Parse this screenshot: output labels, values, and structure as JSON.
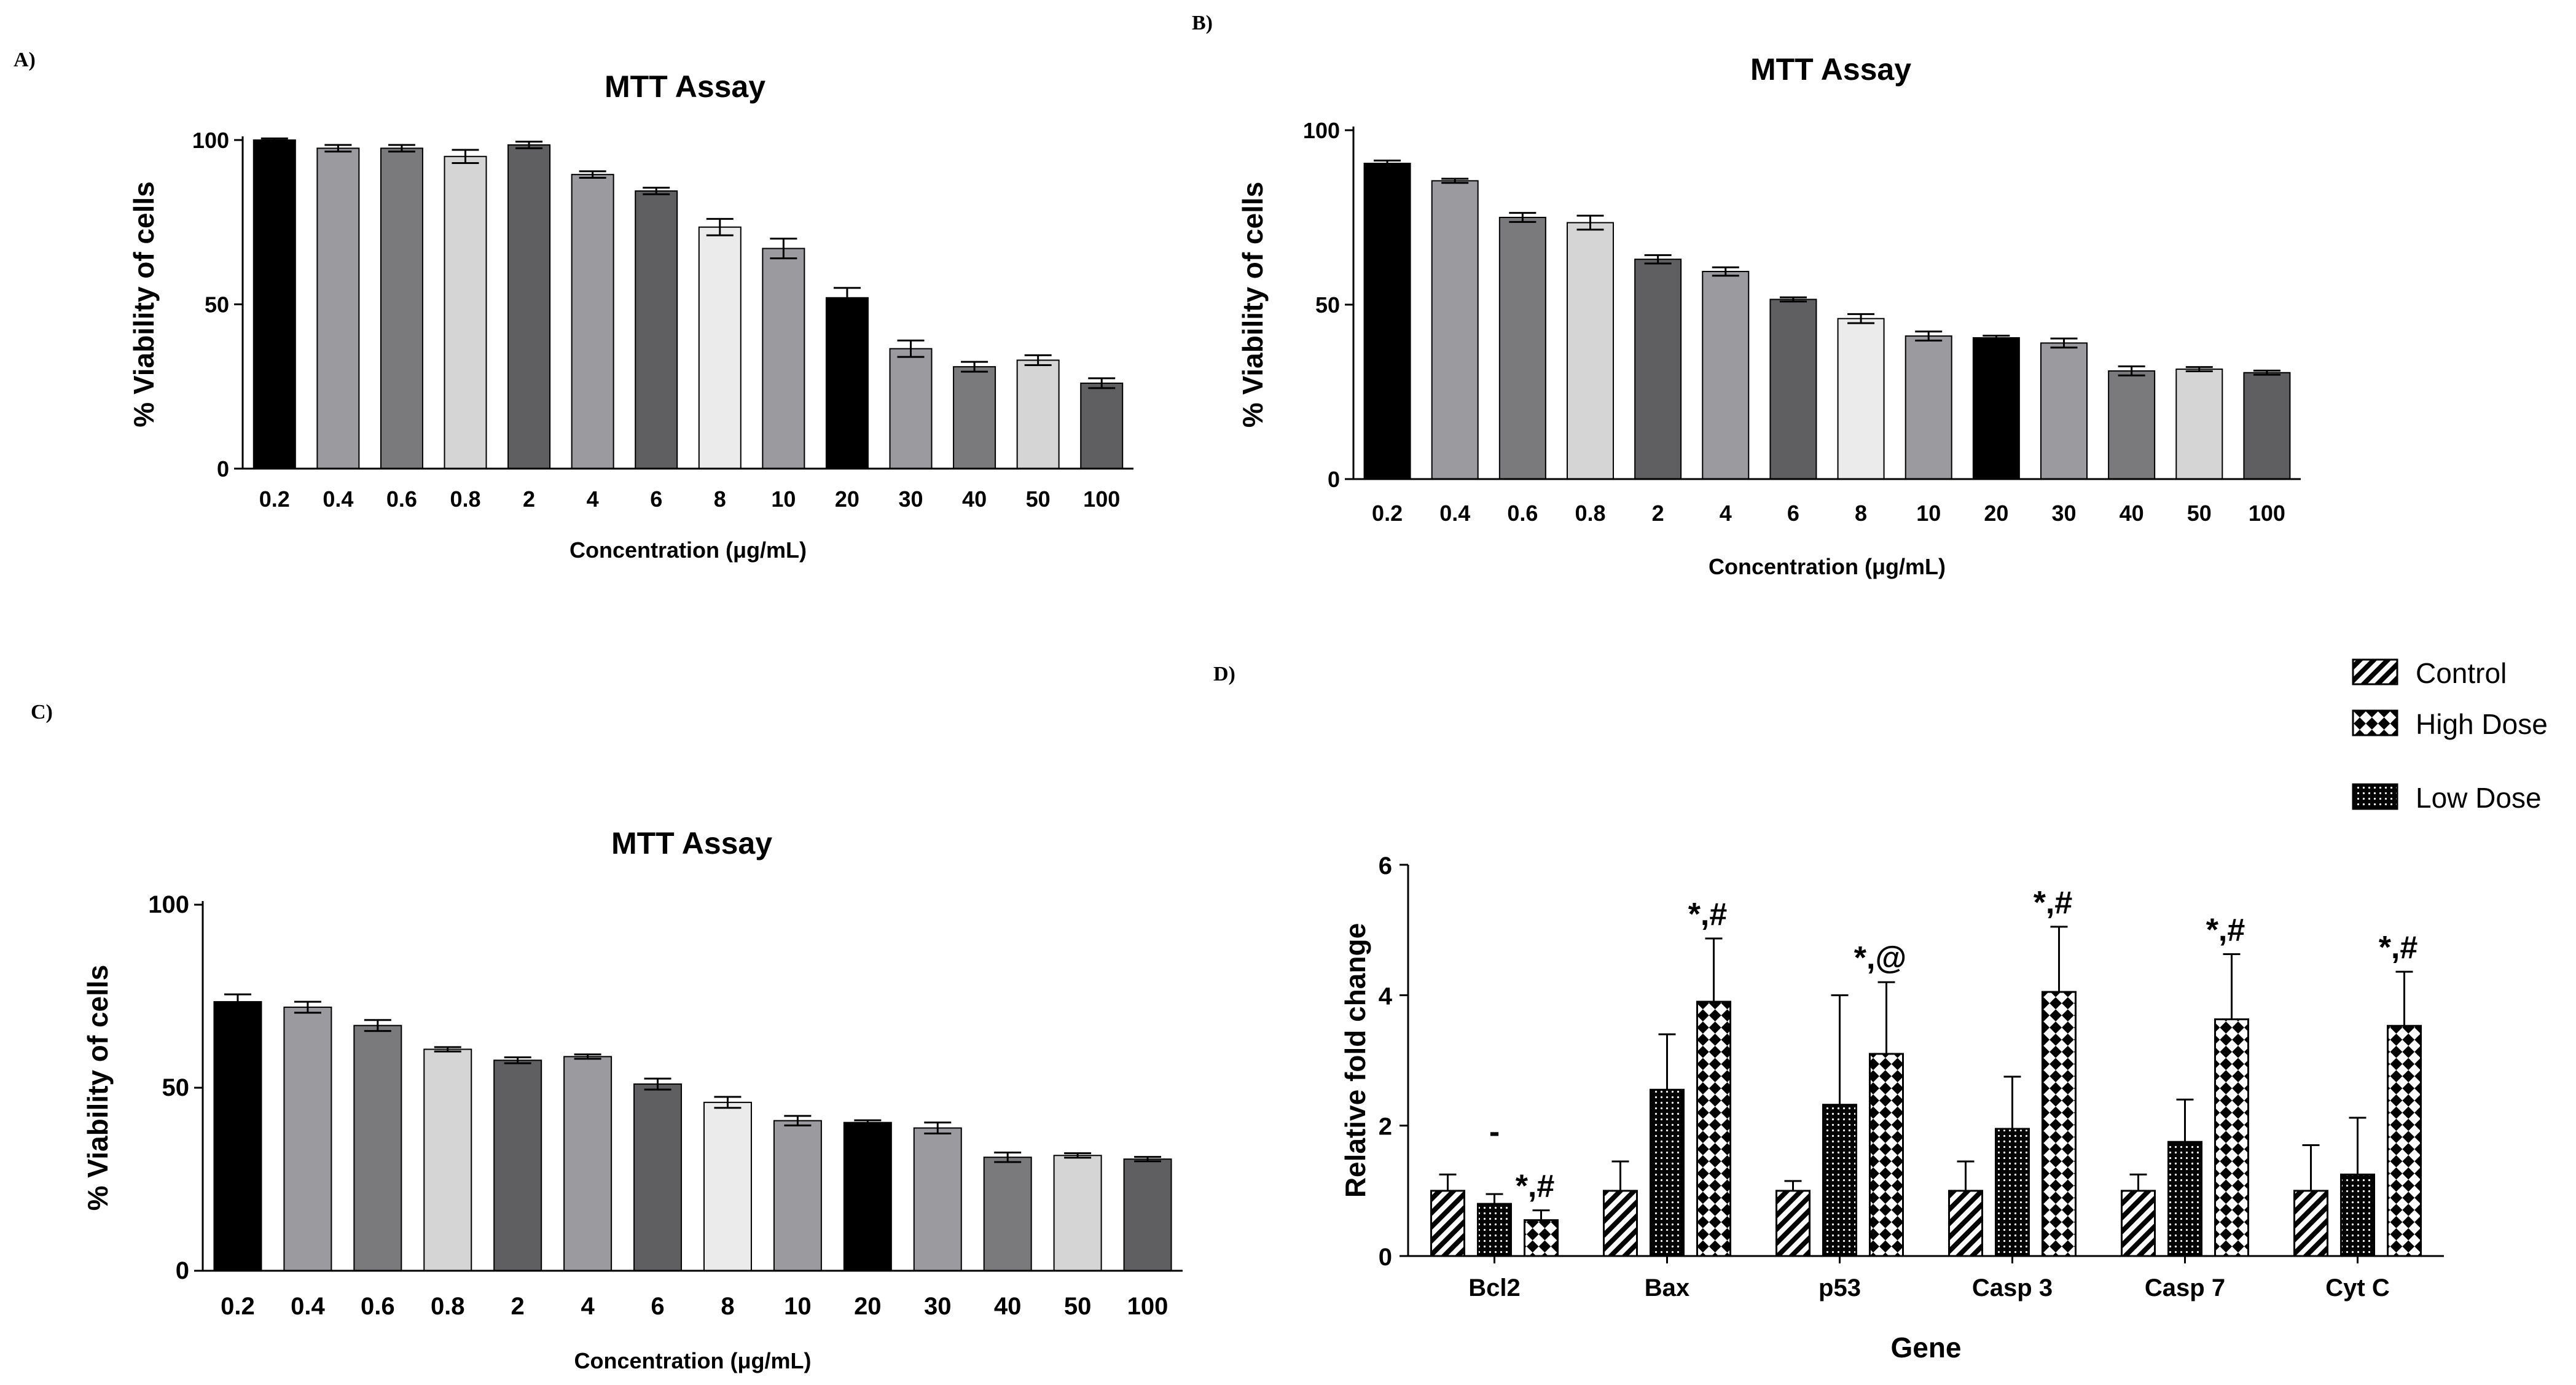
{
  "colors": {
    "black": "#000000",
    "mid_gray": "#9b9b9f",
    "gray": "#7a7a7c",
    "light_gray": "#d5d5d5",
    "dark_gray": "#5f5f61",
    "very_light": "#ebebeb"
  },
  "chart_data": [
    {
      "panel": "A)",
      "type": "bar",
      "title": "MTT Assay",
      "xlabel": "Concentration (μg/mL)",
      "ylabel": "% Viability of cells",
      "ylim": [
        0,
        100
      ],
      "yticks": [
        "0",
        "50",
        "100"
      ],
      "categories": [
        "0.2",
        "0.4",
        "0.6",
        "0.8",
        "2",
        "4",
        "6",
        "8",
        "10",
        "20",
        "30",
        "40",
        "50",
        "100"
      ],
      "values": [
        100,
        97.5,
        97.5,
        95,
        98.5,
        89.5,
        84.5,
        73.5,
        67,
        52,
        36.5,
        31,
        33,
        26
      ],
      "errors": [
        0.5,
        1,
        1,
        2,
        1,
        1,
        1,
        2.5,
        3,
        3,
        2.5,
        1.5,
        1.5,
        1.5
      ],
      "colors": [
        "black",
        "mid_gray",
        "gray",
        "light_gray",
        "dark_gray",
        "mid_gray",
        "dark_gray",
        "very_light",
        "mid_gray",
        "black",
        "mid_gray",
        "gray",
        "light_gray",
        "dark_gray"
      ]
    },
    {
      "panel": "B)",
      "type": "bar",
      "title": "MTT Assay",
      "xlabel": "Concentration (μg/mL)",
      "ylabel": "% Viability of cells",
      "ylim": [
        0,
        100
      ],
      "yticks": [
        "0",
        "50",
        "100"
      ],
      "categories": [
        "0.2",
        "0.4",
        "0.6",
        "0.8",
        "2",
        "4",
        "6",
        "8",
        "10",
        "20",
        "30",
        "40",
        "50",
        "100"
      ],
      "values": [
        90.5,
        85.5,
        75,
        73.5,
        63,
        59.5,
        51.5,
        46,
        41,
        40.5,
        39,
        31,
        31.5,
        30.5
      ],
      "errors": [
        0.8,
        0.6,
        1.3,
        2,
        1.2,
        1.2,
        0.6,
        1.3,
        1.3,
        0.6,
        1.3,
        1.3,
        0.6,
        0.6
      ],
      "colors": [
        "black",
        "mid_gray",
        "gray",
        "light_gray",
        "dark_gray",
        "mid_gray",
        "dark_gray",
        "very_light",
        "mid_gray",
        "black",
        "mid_gray",
        "gray",
        "light_gray",
        "dark_gray"
      ]
    },
    {
      "panel": "C)",
      "type": "bar",
      "title": "MTT Assay",
      "xlabel": "Concentration (μg/mL)",
      "ylabel": "% Viability of cells",
      "ylim": [
        0,
        100
      ],
      "yticks": [
        "0",
        "50",
        "100"
      ],
      "categories": [
        "0.2",
        "0.4",
        "0.6",
        "0.8",
        "2",
        "4",
        "6",
        "8",
        "10",
        "20",
        "30",
        "40",
        "50",
        "100"
      ],
      "values": [
        73.5,
        72,
        67,
        60.5,
        57.5,
        58.5,
        51,
        46,
        41,
        40.5,
        39,
        31,
        31.5,
        30.5
      ],
      "errors": [
        2,
        1.5,
        1.5,
        0.6,
        0.8,
        0.6,
        1.5,
        1.5,
        1.3,
        0.6,
        1.5,
        1.3,
        0.6,
        0.6
      ],
      "colors": [
        "black",
        "mid_gray",
        "gray",
        "light_gray",
        "dark_gray",
        "mid_gray",
        "dark_gray",
        "very_light",
        "mid_gray",
        "black",
        "mid_gray",
        "gray",
        "light_gray",
        "dark_gray"
      ]
    },
    {
      "panel": "D)",
      "type": "bar",
      "title": "",
      "xlabel": "Gene",
      "ylabel": "Relative fold change",
      "ylim": [
        0,
        6
      ],
      "yticks": [
        "0",
        "2",
        "4",
        "6"
      ],
      "categories": [
        "Bcl2",
        "Bax",
        "p53",
        "Casp 3",
        "Casp 7",
        "Cyt C"
      ],
      "series": [
        {
          "name": "Control",
          "pattern": "hatch",
          "values": [
            1,
            1,
            1,
            1,
            1,
            1
          ],
          "errors": [
            0.25,
            0.45,
            0.15,
            0.45,
            0.25,
            0.7
          ]
        },
        {
          "name": "Low Dose",
          "pattern": "dots",
          "values": [
            0.8,
            2.55,
            2.32,
            1.95,
            1.75,
            1.25
          ],
          "errors": [
            0.15,
            0.85,
            1.68,
            0.8,
            0.65,
            0.87
          ]
        },
        {
          "name": "High Dose",
          "pattern": "checker",
          "values": [
            0.55,
            3.9,
            3.1,
            4.05,
            3.63,
            3.53
          ],
          "errors": [
            0.15,
            0.97,
            1.1,
            1.0,
            1.0,
            0.83
          ]
        }
      ],
      "legend_order": [
        "Control",
        "High Dose",
        "Low Dose"
      ],
      "legend_placement": "top-right",
      "annotations": [
        "*,#",
        "*,#",
        "*,@",
        "*,#",
        "*,#",
        "*,#"
      ],
      "minor_mark": "-"
    }
  ]
}
